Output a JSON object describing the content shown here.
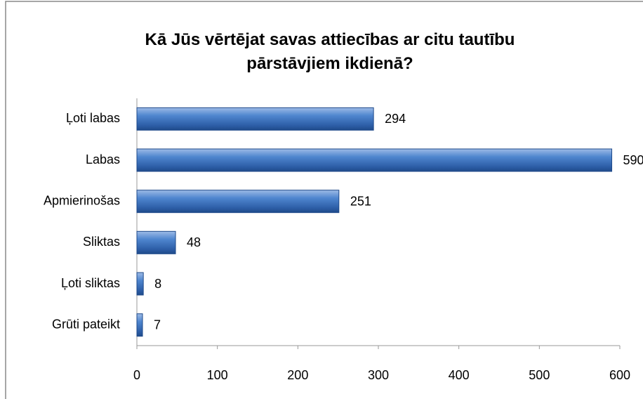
{
  "chart_data": {
    "type": "bar",
    "orientation": "horizontal",
    "title": "Kā Jūs vērtējat savas attiecības ar citu tautību pārstāvjiem ikdienā?",
    "categories": [
      "Ļoti labas",
      "Labas",
      "Apmierinošas",
      "Sliktas",
      "Ļoti sliktas",
      "Grūti pateikt"
    ],
    "values": [
      294,
      590,
      251,
      48,
      8,
      7
    ],
    "color": "#3a6fb8",
    "xlim": [
      0,
      600
    ],
    "xticks": [
      0,
      100,
      200,
      300,
      400,
      500,
      600
    ],
    "grid": false
  }
}
